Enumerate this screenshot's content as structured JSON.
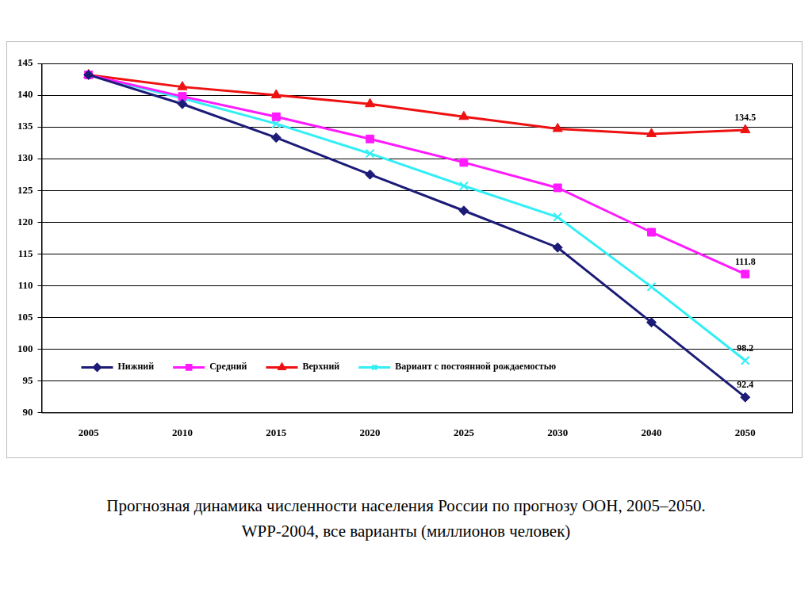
{
  "chart_data": {
    "type": "line",
    "title": "Прогнозная динамика численности населения России по прогнозу ООН, 2005–2050.",
    "subtitle": "WPP-2004, все варианты (миллионов человек)",
    "categories": [
      "2005",
      "2010",
      "2015",
      "2020",
      "2025",
      "2030",
      "2040",
      "2050"
    ],
    "series": [
      {
        "name": "Нижний",
        "color": "#1c1c78",
        "marker": "diamond",
        "values": [
          143.2,
          138.6,
          133.3,
          127.5,
          121.8,
          116.0,
          104.2,
          92.4
        ],
        "value_labels": [
          null,
          null,
          null,
          null,
          null,
          null,
          null,
          "92.4"
        ]
      },
      {
        "name": "Средний",
        "color": "#ff1aff",
        "marker": "square",
        "values": [
          143.2,
          139.8,
          136.6,
          133.1,
          129.4,
          125.4,
          118.4,
          111.8
        ],
        "value_labels": [
          null,
          null,
          null,
          null,
          null,
          null,
          null,
          "111.8"
        ]
      },
      {
        "name": "Верхний",
        "color": "#ee1111",
        "marker": "triangle",
        "values": [
          143.2,
          141.3,
          140.0,
          138.6,
          136.6,
          134.7,
          133.9,
          134.5
        ],
        "value_labels": [
          null,
          null,
          null,
          null,
          null,
          null,
          null,
          "134.5"
        ]
      },
      {
        "name": "Вариант с постоянной рождаемостью",
        "color": "#33eef5",
        "marker": "x",
        "values": [
          143.2,
          139.5,
          135.5,
          130.8,
          125.7,
          120.8,
          109.8,
          98.2
        ],
        "value_labels": [
          null,
          null,
          null,
          null,
          null,
          null,
          null,
          "98.2"
        ]
      }
    ],
    "ylim": [
      90,
      145
    ],
    "yticks": [
      90,
      95,
      100,
      105,
      110,
      115,
      120,
      125,
      130,
      135,
      140,
      145
    ],
    "grid": true,
    "legend": "lower left"
  }
}
